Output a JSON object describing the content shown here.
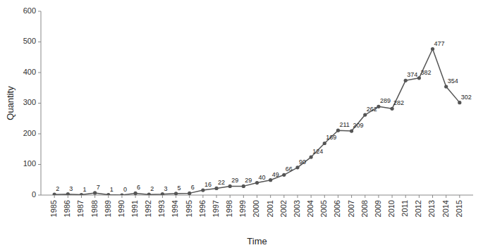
{
  "chart_data": {
    "type": "line",
    "x": [
      1985,
      1986,
      1987,
      1988,
      1989,
      1990,
      1991,
      1992,
      1993,
      1994,
      1995,
      1996,
      1997,
      1998,
      1999,
      2000,
      2001,
      2002,
      2003,
      2004,
      2005,
      2006,
      2007,
      2008,
      2009,
      2010,
      2011,
      2012,
      2013,
      2014,
      2015
    ],
    "values": [
      2,
      3,
      1,
      7,
      1,
      0,
      6,
      2,
      3,
      5,
      6,
      16,
      22,
      29,
      29,
      40,
      49,
      66,
      90,
      124,
      169,
      211,
      209,
      262,
      289,
      282,
      374,
      382,
      477,
      354,
      302
    ],
    "color": "#555555",
    "marker": "circle",
    "data_labels": true,
    "x_label": "Time",
    "y_label": "Quantity",
    "xlim": [
      1984,
      2016
    ],
    "xticks": [
      1985,
      1986,
      1987,
      1988,
      1989,
      1990,
      1991,
      1992,
      1993,
      1994,
      1995,
      1996,
      1997,
      1998,
      1999,
      2000,
      2001,
      2002,
      2003,
      2004,
      2005,
      2006,
      2007,
      2008,
      2009,
      2010,
      2011,
      2012,
      2013,
      2014,
      2015
    ],
    "ylim": [
      0,
      600
    ],
    "yticks": [
      0,
      100,
      200,
      300,
      400,
      500,
      600
    ],
    "grid": false
  }
}
